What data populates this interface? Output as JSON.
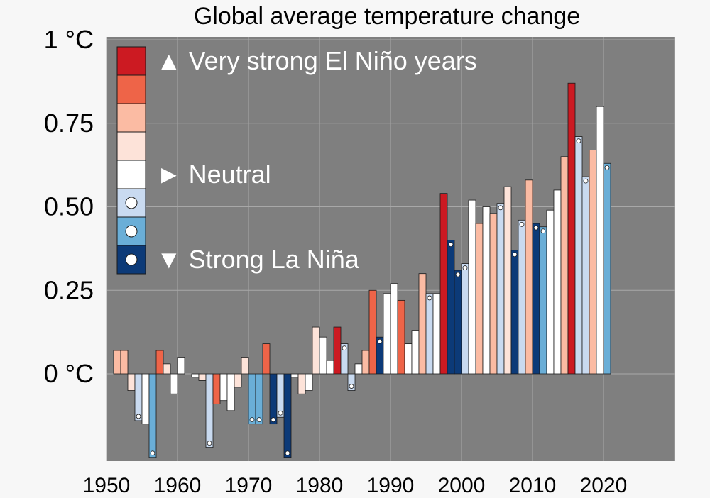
{
  "chart_data": {
    "type": "bar",
    "title": "Global average temperature change",
    "xlabel": "",
    "ylabel": "",
    "xlim": [
      1950,
      2030
    ],
    "ylim": [
      -0.26,
      1.0
    ],
    "y_ticks": [
      {
        "value": 1.0,
        "label": "1 °C"
      },
      {
        "value": 0.75,
        "label": "0.75"
      },
      {
        "value": 0.5,
        "label": "0.50"
      },
      {
        "value": 0.25,
        "label": "0.25"
      },
      {
        "value": 0.0,
        "label": "0 °C"
      }
    ],
    "x_ticks": [
      {
        "value": 1950,
        "label": "1950"
      },
      {
        "value": 1960,
        "label": "1960"
      },
      {
        "value": 1970,
        "label": "1970"
      },
      {
        "value": 1980,
        "label": "1980"
      },
      {
        "value": 1990,
        "label": "1990"
      },
      {
        "value": 2000,
        "label": "2000"
      },
      {
        "value": 2010,
        "label": "2010"
      },
      {
        "value": 2020,
        "label": "2020"
      }
    ],
    "grid": true,
    "categories_legend": [
      {
        "key": "vsen",
        "color": "#cc1a22",
        "dot": false
      },
      {
        "key": "sen",
        "color": "#ee6448",
        "dot": false
      },
      {
        "key": "men",
        "color": "#fbbba3",
        "dot": false
      },
      {
        "key": "wen",
        "color": "#fde3d9",
        "dot": false
      },
      {
        "key": "neu",
        "color": "#ffffff",
        "dot": false
      },
      {
        "key": "wln",
        "color": "#c9daf0",
        "dot": true
      },
      {
        "key": "mln",
        "color": "#6aaed7",
        "dot": true
      },
      {
        "key": "sln",
        "color": "#0c3a78",
        "dot": true
      }
    ],
    "legend_labels": [
      {
        "text": "▲ Very strong El Niño years",
        "row": 0
      },
      {
        "text": "► Neutral",
        "row": 4
      },
      {
        "text": "▼ Strong La Niña",
        "row": 7
      }
    ],
    "series": [
      {
        "year": 1951,
        "value": 0.07,
        "cat": "men"
      },
      {
        "year": 1952,
        "value": 0.07,
        "cat": "men"
      },
      {
        "year": 1953,
        "value": -0.05,
        "cat": "wen"
      },
      {
        "year": 1954,
        "value": -0.14,
        "cat": "wln"
      },
      {
        "year": 1955,
        "value": -0.15,
        "cat": "neu"
      },
      {
        "year": 1956,
        "value": -0.25,
        "cat": "mln"
      },
      {
        "year": 1957,
        "value": 0.07,
        "cat": "sen"
      },
      {
        "year": 1958,
        "value": 0.03,
        "cat": "wen"
      },
      {
        "year": 1959,
        "value": -0.06,
        "cat": "neu"
      },
      {
        "year": 1960,
        "value": 0.05,
        "cat": "neu"
      },
      {
        "year": 1962,
        "value": -0.01,
        "cat": "neu"
      },
      {
        "year": 1963,
        "value": -0.02,
        "cat": "wen"
      },
      {
        "year": 1964,
        "value": -0.22,
        "cat": "wln"
      },
      {
        "year": 1965,
        "value": -0.09,
        "cat": "sen"
      },
      {
        "year": 1966,
        "value": -0.08,
        "cat": "neu"
      },
      {
        "year": 1967,
        "value": -0.11,
        "cat": "neu"
      },
      {
        "year": 1968,
        "value": -0.04,
        "cat": "wen"
      },
      {
        "year": 1969,
        "value": 0.05,
        "cat": "wen"
      },
      {
        "year": 1970,
        "value": -0.15,
        "cat": "mln"
      },
      {
        "year": 1971,
        "value": -0.15,
        "cat": "mln"
      },
      {
        "year": 1972,
        "value": 0.09,
        "cat": "sen"
      },
      {
        "year": 1973,
        "value": -0.15,
        "cat": "sln"
      },
      {
        "year": 1974,
        "value": -0.13,
        "cat": "wln"
      },
      {
        "year": 1975,
        "value": -0.25,
        "cat": "sln"
      },
      {
        "year": 1976,
        "value": -0.01,
        "cat": "neu"
      },
      {
        "year": 1977,
        "value": -0.06,
        "cat": "wen"
      },
      {
        "year": 1978,
        "value": -0.05,
        "cat": "neu"
      },
      {
        "year": 1979,
        "value": 0.14,
        "cat": "wen"
      },
      {
        "year": 1980,
        "value": 0.11,
        "cat": "neu"
      },
      {
        "year": 1981,
        "value": 0.04,
        "cat": "neu"
      },
      {
        "year": 1982,
        "value": 0.14,
        "cat": "vsen"
      },
      {
        "year": 1983,
        "value": 0.09,
        "cat": "wln"
      },
      {
        "year": 1984,
        "value": -0.05,
        "cat": "wln"
      },
      {
        "year": 1985,
        "value": 0.03,
        "cat": "neu"
      },
      {
        "year": 1986,
        "value": 0.07,
        "cat": "men"
      },
      {
        "year": 1987,
        "value": 0.25,
        "cat": "sen"
      },
      {
        "year": 1988,
        "value": 0.11,
        "cat": "sln"
      },
      {
        "year": 1989,
        "value": 0.24,
        "cat": "neu"
      },
      {
        "year": 1990,
        "value": 0.27,
        "cat": "neu"
      },
      {
        "year": 1991,
        "value": 0.22,
        "cat": "sen"
      },
      {
        "year": 1992,
        "value": 0.09,
        "cat": "neu"
      },
      {
        "year": 1993,
        "value": 0.13,
        "cat": "neu"
      },
      {
        "year": 1994,
        "value": 0.3,
        "cat": "men"
      },
      {
        "year": 1995,
        "value": 0.24,
        "cat": "wln"
      },
      {
        "year": 1996,
        "value": 0.24,
        "cat": "neu"
      },
      {
        "year": 1997,
        "value": 0.54,
        "cat": "vsen"
      },
      {
        "year": 1998,
        "value": 0.4,
        "cat": "sln"
      },
      {
        "year": 1999,
        "value": 0.31,
        "cat": "sln"
      },
      {
        "year": 2000,
        "value": 0.33,
        "cat": "wln"
      },
      {
        "year": 2001,
        "value": 0.52,
        "cat": "neu"
      },
      {
        "year": 2002,
        "value": 0.45,
        "cat": "men"
      },
      {
        "year": 2003,
        "value": 0.5,
        "cat": "neu"
      },
      {
        "year": 2004,
        "value": 0.48,
        "cat": "men"
      },
      {
        "year": 2005,
        "value": 0.51,
        "cat": "wln"
      },
      {
        "year": 2006,
        "value": 0.56,
        "cat": "wen"
      },
      {
        "year": 2007,
        "value": 0.37,
        "cat": "sln"
      },
      {
        "year": 2008,
        "value": 0.46,
        "cat": "wln"
      },
      {
        "year": 2009,
        "value": 0.58,
        "cat": "men"
      },
      {
        "year": 2010,
        "value": 0.45,
        "cat": "sln"
      },
      {
        "year": 2011,
        "value": 0.44,
        "cat": "mln"
      },
      {
        "year": 2012,
        "value": 0.49,
        "cat": "neu"
      },
      {
        "year": 2013,
        "value": 0.55,
        "cat": "neu"
      },
      {
        "year": 2014,
        "value": 0.65,
        "cat": "men"
      },
      {
        "year": 2015,
        "value": 0.87,
        "cat": "vsen"
      },
      {
        "year": 2016,
        "value": 0.71,
        "cat": "wln"
      },
      {
        "year": 2017,
        "value": 0.59,
        "cat": "wln"
      },
      {
        "year": 2018,
        "value": 0.67,
        "cat": "men"
      },
      {
        "year": 2019,
        "value": 0.8,
        "cat": "neu"
      },
      {
        "year": 2020,
        "value": 0.63,
        "cat": "mln"
      }
    ]
  }
}
